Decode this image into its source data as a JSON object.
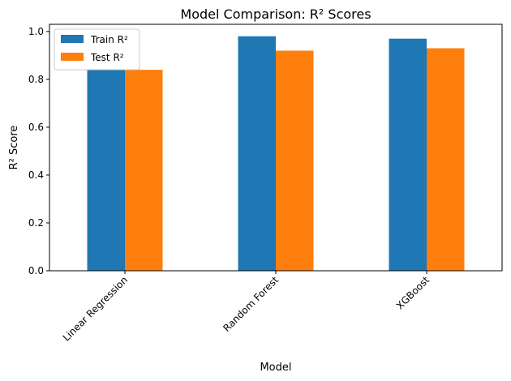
{
  "chart_data": {
    "type": "bar",
    "title": "Model Comparison: R² Scores",
    "xlabel": "Model",
    "ylabel": "R² Score",
    "categories": [
      "Linear Regression",
      "Random Forest",
      "XGBoost"
    ],
    "series": [
      {
        "name": "Train R²",
        "color": "#1f77b4",
        "values": [
          0.84,
          0.98,
          0.97
        ]
      },
      {
        "name": "Test R²",
        "color": "#ff7f0e",
        "values": [
          0.84,
          0.92,
          0.93
        ]
      }
    ],
    "ylim": [
      0,
      1.03
    ],
    "yticks": [
      "0.0",
      "0.2",
      "0.4",
      "0.6",
      "0.8",
      "1.0"
    ],
    "legend_position": "top-left",
    "grid": false
  }
}
